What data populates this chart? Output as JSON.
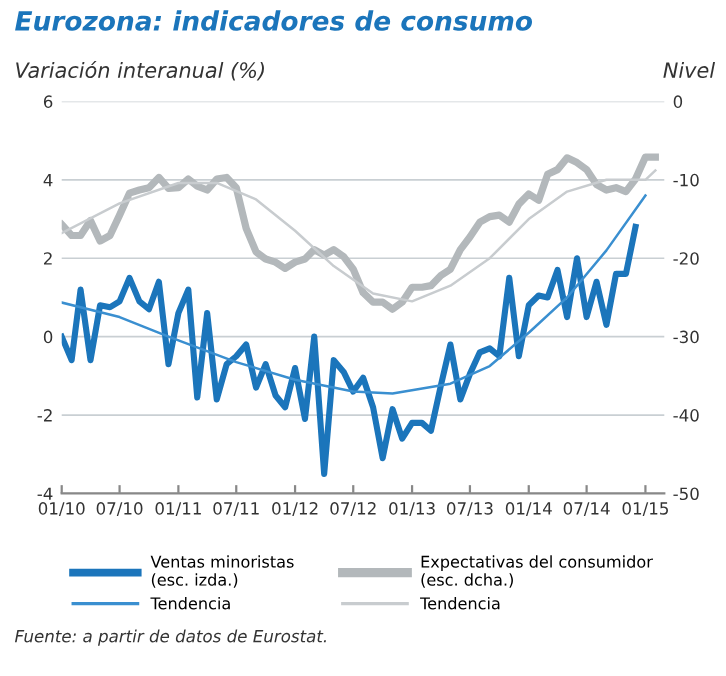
{
  "chart_data": {
    "type": "line",
    "title": "Eurozona: indicadores de consumo",
    "ylabel": "Variación interanual (%)",
    "y2label": "Nivel",
    "xlim": [
      "2010-01",
      "2015-03"
    ],
    "xticks": [
      {
        "value": "2010-01",
        "label": "01/10"
      },
      {
        "value": "2010-07",
        "label": "07/10"
      },
      {
        "value": "2011-01",
        "label": "01/11"
      },
      {
        "value": "2011-07",
        "label": "07/11"
      },
      {
        "value": "2012-01",
        "label": "01/12"
      },
      {
        "value": "2012-07",
        "label": "07/12"
      },
      {
        "value": "2013-01",
        "label": "01/13"
      },
      {
        "value": "2013-07",
        "label": "07/13"
      },
      {
        "value": "2014-01",
        "label": "01/14"
      },
      {
        "value": "2014-07",
        "label": "07/14"
      },
      {
        "value": "2015-01",
        "label": "01/15"
      }
    ],
    "ylim": [
      -4,
      6
    ],
    "yticks": [
      -4,
      -2,
      0,
      2,
      4,
      6
    ],
    "y2lim": [
      -50,
      0
    ],
    "y2ticks": [
      -50,
      -40,
      -30,
      -20,
      -10,
      0
    ],
    "grid": "y",
    "legend": "bottom",
    "marker": "none",
    "series": [
      {
        "name": "Ventas minoristas\n(esc. izda.)",
        "color": "#1b75bb",
        "x": [
          "2010-01",
          "2010-02",
          "2010-03",
          "2010-04",
          "2010-05",
          "2010-06",
          "2010-07",
          "2010-08",
          "2010-09",
          "2010-10",
          "2010-11",
          "2010-12",
          "2011-01",
          "2011-02",
          "2011-03",
          "2011-04",
          "2011-05",
          "2011-06",
          "2011-07",
          "2011-08",
          "2011-09",
          "2011-10",
          "2011-11",
          "2011-12",
          "2012-01",
          "2012-02",
          "2012-03",
          "2012-04",
          "2012-05",
          "2012-06",
          "2012-07",
          "2012-08",
          "2012-09",
          "2012-10",
          "2012-11",
          "2012-12",
          "2013-01",
          "2013-02",
          "2013-03",
          "2013-04",
          "2013-05",
          "2013-06",
          "2013-07",
          "2013-08",
          "2013-09",
          "2013-10",
          "2013-11",
          "2013-12",
          "2014-01",
          "2014-02",
          "2014-03",
          "2014-04",
          "2014-05",
          "2014-06",
          "2014-07",
          "2014-08",
          "2014-09",
          "2014-10",
          "2014-11",
          "2014-12"
        ],
        "values": [
          0,
          -0.6,
          1.2,
          -0.6,
          0.8,
          0.75,
          0.9,
          1.5,
          0.9,
          0.7,
          1.4,
          -0.7,
          0.6,
          1.2,
          -1.55,
          0.6,
          -1.6,
          -0.7,
          -0.5,
          -0.2,
          -1.3,
          -0.7,
          -1.5,
          -1.8,
          -0.8,
          -2.1,
          0,
          -3.5,
          -0.6,
          -0.9,
          -1.4,
          -1.05,
          -1.8,
          -3.1,
          -1.85,
          -2.6,
          -2.2,
          -2.2,
          -2.4,
          -1.25,
          -0.2,
          -1.6,
          -0.95,
          -0.4,
          -0.3,
          -0.5,
          1.5,
          -0.5,
          0.8,
          1.05,
          1.0,
          1.7,
          0.5,
          2.0,
          0.5,
          1.4,
          0.3,
          1.6,
          1.6,
          2.8
        ]
      },
      {
        "name": "Expectativas del consumidor\n(esc. dcha.)",
        "color": "#b3b8bb",
        "axis": "y2",
        "x": [
          "2010-01",
          "2010-02",
          "2010-03",
          "2010-04",
          "2010-05",
          "2010-06",
          "2010-07",
          "2010-08",
          "2010-09",
          "2010-10",
          "2010-11",
          "2010-12",
          "2011-01",
          "2011-02",
          "2011-03",
          "2011-04",
          "2011-05",
          "2011-06",
          "2011-07",
          "2011-08",
          "2011-09",
          "2011-10",
          "2011-11",
          "2011-12",
          "2012-01",
          "2012-02",
          "2012-03",
          "2012-04",
          "2012-05",
          "2012-06",
          "2012-07",
          "2012-08",
          "2012-09",
          "2012-10",
          "2012-11",
          "2012-12",
          "2013-01",
          "2013-02",
          "2013-03",
          "2013-04",
          "2013-05",
          "2013-06",
          "2013-07",
          "2013-08",
          "2013-09",
          "2013-10",
          "2013-11",
          "2013-12",
          "2014-01",
          "2014-02",
          "2014-03",
          "2014-04",
          "2014-05",
          "2014-06",
          "2014-07",
          "2014-08",
          "2014-09",
          "2014-10",
          "2014-11",
          "2014-12",
          "2015-01",
          "2015-02"
        ],
        "values": [
          -15.7,
          -17.1,
          -17.1,
          -15.2,
          -17.8,
          -17.1,
          -14.5,
          -11.7,
          -11.3,
          -11,
          -9.7,
          -11.1,
          -11,
          -9.9,
          -10.8,
          -11.3,
          -9.9,
          -9.7,
          -11,
          -16.2,
          -19.2,
          -20.1,
          -20.5,
          -21.3,
          -20.5,
          -20.1,
          -18.9,
          -19.6,
          -18.9,
          -19.8,
          -21.4,
          -24.4,
          -25.6,
          -25.6,
          -26.5,
          -25.6,
          -23.7,
          -23.7,
          -23.5,
          -22.2,
          -21.4,
          -18.9,
          -17.3,
          -15.4,
          -14.7,
          -14.5,
          -15.4,
          -13.1,
          -11.8,
          -12.6,
          -9.3,
          -8.7,
          -7.2,
          -7.8,
          -8.7,
          -10.6,
          -11.3,
          -11,
          -11.5,
          -9.9,
          -7.1,
          -7.1
        ]
      },
      {
        "name": "Tendencia",
        "color": "#3a8fd0",
        "x": [
          "2010-01",
          "2010-07",
          "2010-12",
          "2011-07",
          "2012-01",
          "2012-07",
          "2012-11",
          "2013-05",
          "2013-09",
          "2014-01",
          "2014-05",
          "2014-09",
          "2015-01"
        ],
        "values": [
          0.87,
          0.5,
          0,
          -0.65,
          -1.1,
          -1.4,
          -1.45,
          -1.2,
          -0.75,
          0.1,
          1.0,
          2.2,
          3.6
        ]
      },
      {
        "name": "Tendencia",
        "color": "#c8cccf",
        "axis": "y2",
        "x": [
          "2010-01",
          "2010-07",
          "2011-01",
          "2011-05",
          "2011-09",
          "2012-01",
          "2012-05",
          "2012-09",
          "2013-01",
          "2013-05",
          "2013-09",
          "2014-01",
          "2014-05",
          "2014-09",
          "2015-01",
          "2015-02"
        ],
        "values": [
          -16.8,
          -13,
          -10.4,
          -10.4,
          -12.5,
          -16.5,
          -21,
          -24.5,
          -25.5,
          -23.5,
          -20,
          -15,
          -11.5,
          -10,
          -10,
          -8.8
        ]
      }
    ],
    "annotations": [
      "Fuente: a partir de datos de Eurostat."
    ]
  }
}
